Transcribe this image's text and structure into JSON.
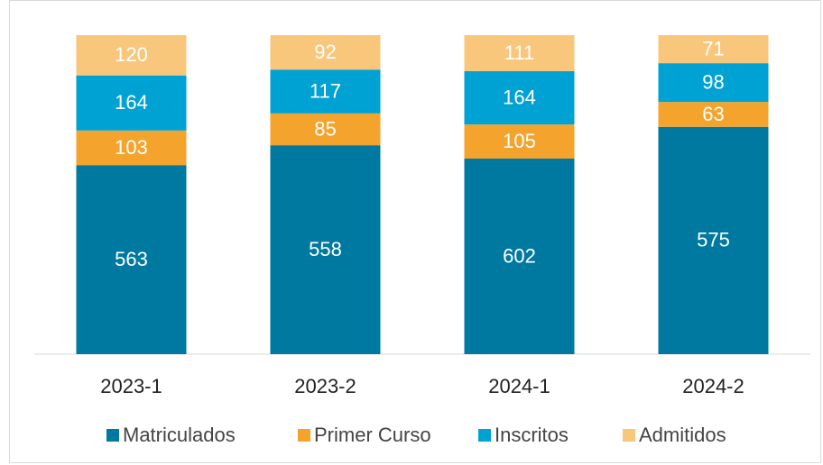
{
  "chart_data": {
    "type": "bar",
    "stacking": "percent",
    "categories": [
      "2023-1",
      "2023-2",
      "2024-1",
      "2024-2"
    ],
    "series": [
      {
        "name": "Matriculados",
        "color": "#0079a1",
        "values": [
          563,
          558,
          602,
          575
        ]
      },
      {
        "name": "Primer Curso",
        "color": "#f4a42c",
        "values": [
          103,
          85,
          105,
          63
        ]
      },
      {
        "name": "Inscritos",
        "color": "#00a2d3",
        "values": [
          164,
          117,
          164,
          98
        ]
      },
      {
        "name": "Admitidos",
        "color": "#f8c77b",
        "values": [
          120,
          92,
          111,
          71
        ]
      }
    ]
  }
}
